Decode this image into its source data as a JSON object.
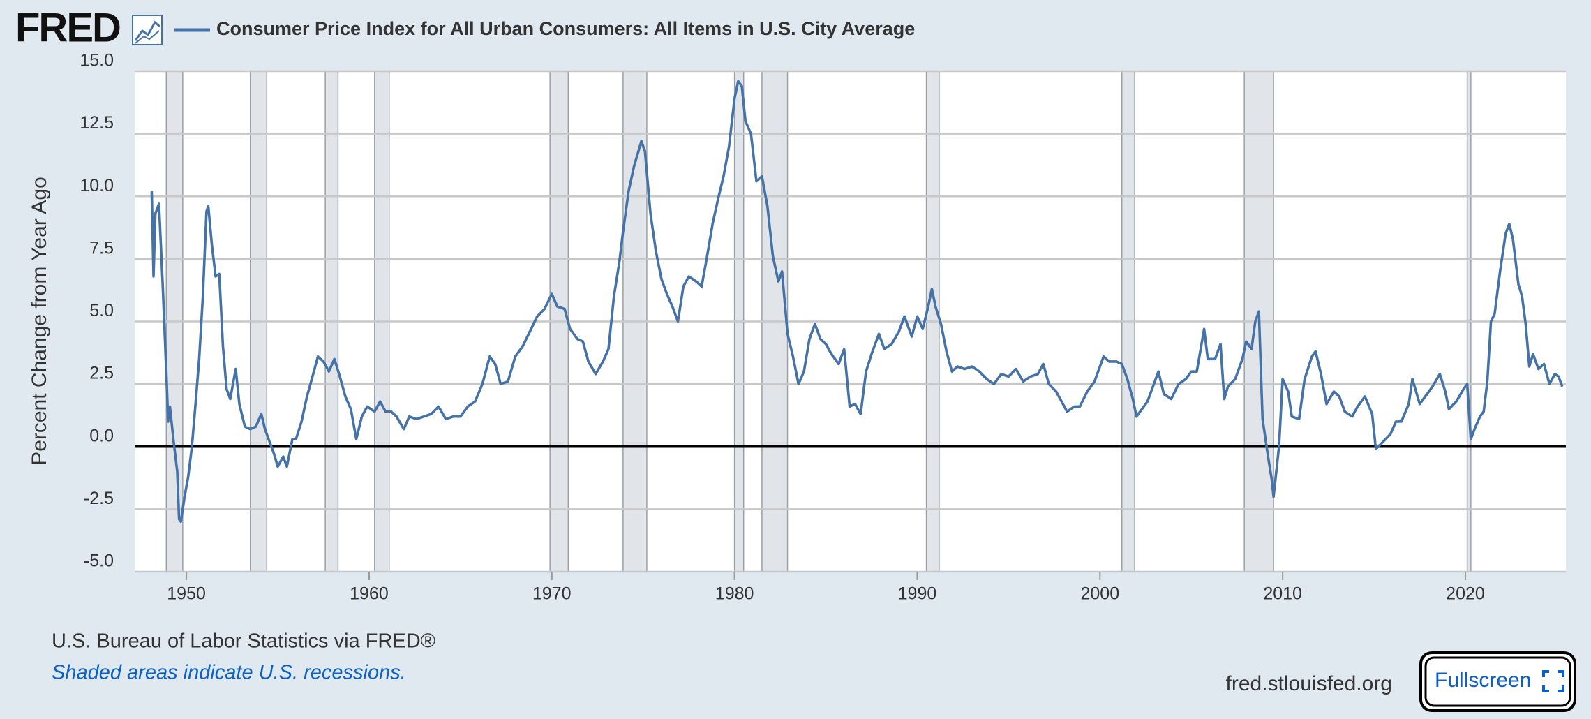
{
  "logo": "FRED",
  "chart_data": {
    "type": "line",
    "y_label": "Percent Change from Year Ago",
    "x": [
      1948.1,
      1948.2,
      1948.3,
      1948.5,
      1948.7,
      1948.9,
      1949.0,
      1949.1,
      1949.3,
      1949.5,
      1949.6,
      1949.7,
      1949.9,
      1950.1,
      1950.3,
      1950.5,
      1950.7,
      1950.9,
      1951.1,
      1951.2,
      1951.4,
      1951.6,
      1951.8,
      1952.0,
      1952.2,
      1952.4,
      1952.7,
      1952.9,
      1953.2,
      1953.5,
      1953.8,
      1954.1,
      1954.3,
      1954.5,
      1954.8,
      1955.0,
      1955.3,
      1955.5,
      1955.8,
      1956.0,
      1956.3,
      1956.6,
      1956.9,
      1957.2,
      1957.5,
      1957.8,
      1958.1,
      1958.4,
      1958.7,
      1959.0,
      1959.3,
      1959.6,
      1959.9,
      1960.3,
      1960.6,
      1960.9,
      1961.2,
      1961.5,
      1961.9,
      1962.2,
      1962.6,
      1963.0,
      1963.4,
      1963.8,
      1964.2,
      1964.6,
      1965.0,
      1965.4,
      1965.8,
      1966.2,
      1966.6,
      1966.9,
      1967.2,
      1967.6,
      1968.0,
      1968.4,
      1968.8,
      1969.2,
      1969.6,
      1970.0,
      1970.3,
      1970.7,
      1971.0,
      1971.4,
      1971.7,
      1972.0,
      1972.4,
      1972.8,
      1973.1,
      1973.4,
      1973.7,
      1973.9,
      1974.2,
      1974.5,
      1974.9,
      1975.1,
      1975.4,
      1975.7,
      1976.0,
      1976.3,
      1976.6,
      1976.9,
      1977.2,
      1977.5,
      1977.9,
      1978.2,
      1978.5,
      1978.8,
      1979.1,
      1979.4,
      1979.7,
      1980.0,
      1980.2,
      1980.4,
      1980.6,
      1980.9,
      1981.2,
      1981.5,
      1981.8,
      1982.1,
      1982.4,
      1982.6,
      1982.9,
      1983.2,
      1983.5,
      1983.8,
      1984.1,
      1984.4,
      1984.7,
      1985.0,
      1985.3,
      1985.7,
      1986.0,
      1986.3,
      1986.6,
      1986.9,
      1987.2,
      1987.5,
      1987.9,
      1988.2,
      1988.6,
      1989.0,
      1989.3,
      1989.7,
      1990.0,
      1990.3,
      1990.6,
      1990.8,
      1991.0,
      1991.3,
      1991.6,
      1991.9,
      1992.2,
      1992.6,
      1993.0,
      1993.4,
      1993.8,
      1994.2,
      1994.6,
      1995.0,
      1995.4,
      1995.8,
      1996.2,
      1996.6,
      1996.9,
      1997.2,
      1997.6,
      1997.9,
      1998.2,
      1998.6,
      1998.9,
      1999.3,
      1999.7,
      2000.2,
      2000.5,
      2000.9,
      2001.2,
      2001.5,
      2001.8,
      2002.0,
      2002.3,
      2002.6,
      2003.0,
      2003.2,
      2003.5,
      2003.9,
      2004.3,
      2004.7,
      2005.0,
      2005.3,
      2005.7,
      2005.9,
      2006.3,
      2006.6,
      2006.8,
      2007.0,
      2007.4,
      2007.8,
      2008.0,
      2008.3,
      2008.5,
      2008.7,
      2008.9,
      2009.2,
      2009.4,
      2009.5,
      2009.8,
      2010.0,
      2010.3,
      2010.5,
      2010.9,
      2011.2,
      2011.6,
      2011.8,
      2012.1,
      2012.4,
      2012.8,
      2013.1,
      2013.4,
      2013.8,
      2014.1,
      2014.5,
      2014.9,
      2015.1,
      2015.5,
      2015.9,
      2016.2,
      2016.5,
      2016.9,
      2017.1,
      2017.5,
      2017.9,
      2018.2,
      2018.6,
      2018.9,
      2019.1,
      2019.5,
      2019.9,
      2020.1,
      2020.3,
      2020.5,
      2020.8,
      2021.0,
      2021.2,
      2021.4,
      2021.6,
      2021.9,
      2022.2,
      2022.4,
      2022.6,
      2022.9,
      2023.1,
      2023.3,
      2023.5,
      2023.7,
      2024.0,
      2024.3,
      2024.6,
      2024.9,
      2025.1,
      2025.3
    ],
    "series": [
      {
        "name": "Consumer Price Index for All Urban Consumers: All Items in U.S. City Average",
        "color": "#4572a7",
        "values": [
          10.2,
          6.8,
          9.3,
          9.7,
          6.5,
          3.0,
          1.0,
          1.6,
          0.2,
          -1.0,
          -2.9,
          -3.0,
          -2.0,
          -1.2,
          0.0,
          1.7,
          3.5,
          6.0,
          9.4,
          9.6,
          8.0,
          6.8,
          6.9,
          4.0,
          2.3,
          1.9,
          3.1,
          1.7,
          0.8,
          0.7,
          0.8,
          1.3,
          0.7,
          0.3,
          -0.3,
          -0.8,
          -0.4,
          -0.8,
          0.3,
          0.3,
          1.0,
          2.0,
          2.8,
          3.6,
          3.4,
          3.0,
          3.5,
          2.8,
          2.0,
          1.5,
          0.3,
          1.2,
          1.6,
          1.4,
          1.8,
          1.4,
          1.4,
          1.2,
          0.7,
          1.2,
          1.1,
          1.2,
          1.3,
          1.6,
          1.1,
          1.2,
          1.2,
          1.6,
          1.8,
          2.5,
          3.6,
          3.3,
          2.5,
          2.6,
          3.6,
          4.0,
          4.6,
          5.2,
          5.5,
          6.1,
          5.6,
          5.5,
          4.7,
          4.3,
          4.2,
          3.4,
          2.9,
          3.4,
          3.9,
          6.0,
          7.4,
          8.6,
          10.2,
          11.2,
          12.2,
          11.8,
          9.3,
          7.8,
          6.7,
          6.1,
          5.6,
          5.0,
          6.4,
          6.8,
          6.6,
          6.4,
          7.6,
          8.9,
          9.9,
          10.8,
          12.0,
          13.9,
          14.6,
          14.4,
          13.0,
          12.5,
          10.6,
          10.8,
          9.6,
          7.6,
          6.6,
          7.0,
          4.5,
          3.6,
          2.5,
          3.0,
          4.3,
          4.9,
          4.3,
          4.1,
          3.7,
          3.3,
          3.9,
          1.6,
          1.7,
          1.3,
          3.0,
          3.7,
          4.5,
          3.9,
          4.1,
          4.6,
          5.2,
          4.4,
          5.2,
          4.7,
          5.6,
          6.3,
          5.6,
          4.9,
          3.8,
          3.0,
          3.2,
          3.1,
          3.2,
          3.0,
          2.7,
          2.5,
          2.9,
          2.8,
          3.1,
          2.6,
          2.8,
          2.9,
          3.3,
          2.5,
          2.2,
          1.8,
          1.4,
          1.6,
          1.6,
          2.2,
          2.6,
          3.6,
          3.4,
          3.4,
          3.3,
          2.7,
          1.9,
          1.2,
          1.5,
          1.8,
          2.6,
          3.0,
          2.1,
          1.9,
          2.5,
          2.7,
          3.0,
          3.0,
          4.7,
          3.5,
          3.5,
          4.1,
          1.9,
          2.4,
          2.7,
          3.5,
          4.2,
          3.9,
          5.0,
          5.4,
          1.1,
          -0.4,
          -1.3,
          -2.0,
          0.0,
          2.7,
          2.2,
          1.2,
          1.1,
          2.7,
          3.6,
          3.8,
          2.9,
          1.7,
          2.2,
          2.0,
          1.4,
          1.2,
          1.6,
          2.0,
          1.3,
          -0.1,
          0.2,
          0.5,
          1.0,
          1.0,
          1.7,
          2.7,
          1.7,
          2.1,
          2.4,
          2.9,
          2.2,
          1.5,
          1.8,
          2.3,
          2.5,
          0.3,
          0.7,
          1.2,
          1.4,
          2.6,
          5.0,
          5.3,
          7.0,
          8.5,
          8.9,
          8.3,
          6.5,
          6.0,
          4.9,
          3.2,
          3.7,
          3.1,
          3.3,
          2.5,
          2.9,
          2.8,
          2.4
        ]
      }
    ],
    "recessions": [
      [
        1948.9,
        1949.8
      ],
      [
        1953.5,
        1954.4
      ],
      [
        1957.6,
        1958.3
      ],
      [
        1960.3,
        1961.1
      ],
      [
        1969.9,
        1970.9
      ],
      [
        1973.9,
        1975.2
      ],
      [
        1980.0,
        1980.5
      ],
      [
        1981.5,
        1982.9
      ],
      [
        1990.5,
        1991.2
      ],
      [
        2001.2,
        2001.9
      ],
      [
        2007.9,
        2009.5
      ],
      [
        2020.1,
        2020.3
      ]
    ],
    "xlim": [
      1947.17,
      2025.5
    ],
    "xticks": [
      1950,
      1960,
      1970,
      1980,
      1990,
      2000,
      2010,
      2020
    ],
    "ylim": [
      -5,
      15
    ],
    "yticks": [
      {
        "value": -5,
        "label": "-5.0"
      },
      {
        "value": -2.5,
        "label": "-2.5"
      },
      {
        "value": 0,
        "label": "0.0"
      },
      {
        "value": 2.5,
        "label": "2.5"
      },
      {
        "value": 5,
        "label": "5.0"
      },
      {
        "value": 7.5,
        "label": "7.5"
      },
      {
        "value": 10,
        "label": "10.0"
      },
      {
        "value": 12.5,
        "label": "12.5"
      },
      {
        "value": 15,
        "label": "15.0"
      }
    ],
    "grid": true
  },
  "footer": {
    "source": "U.S. Bureau of Labor Statistics via FRED®",
    "note": "Shaded areas indicate U.S. recessions.",
    "site": "fred.stlouisfed.org",
    "button": "Fullscreen"
  }
}
